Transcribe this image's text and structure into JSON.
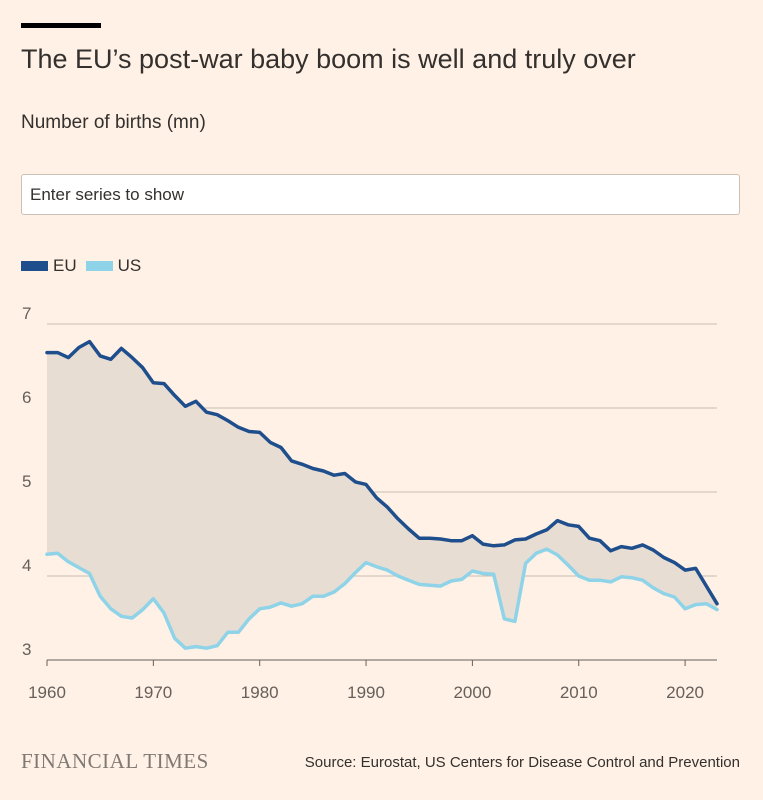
{
  "header": {
    "title": "The EU’s post-war baby boom is well and truly over",
    "subtitle": "Number of births (mn)"
  },
  "search": {
    "placeholder": "Enter series to show"
  },
  "footer": {
    "brand": "FINANCIAL TIMES",
    "source": "Source: Eurostat, US Centers for Disease Control and Prevention"
  },
  "chart_data": {
    "type": "line",
    "title": "The EU’s post-war baby boom is well and truly over",
    "ylabel": "Number of births (mn)",
    "xlim": [
      1960,
      2023
    ],
    "ylim": [
      3,
      7
    ],
    "xticks": [
      1960,
      1970,
      1980,
      1990,
      2000,
      2010,
      2020
    ],
    "yticks": [
      3,
      4,
      5,
      6,
      7
    ],
    "grid": true,
    "legend_position": "top-left",
    "fill_between": true,
    "colors": {
      "EU": "#1f4e8c",
      "US": "#8fd3e8",
      "fill": "#e8ddd3",
      "grid": "#c8beb5",
      "background": "#fff1e5"
    },
    "x": [
      1960,
      1961,
      1962,
      1963,
      1964,
      1965,
      1966,
      1967,
      1968,
      1969,
      1970,
      1971,
      1972,
      1973,
      1974,
      1975,
      1976,
      1977,
      1978,
      1979,
      1980,
      1981,
      1982,
      1983,
      1984,
      1985,
      1986,
      1987,
      1988,
      1989,
      1990,
      1991,
      1992,
      1993,
      1994,
      1995,
      1996,
      1997,
      1998,
      1999,
      2000,
      2001,
      2002,
      2003,
      2004,
      2005,
      2006,
      2007,
      2008,
      2009,
      2010,
      2011,
      2012,
      2013,
      2014,
      2015,
      2016,
      2017,
      2018,
      2019,
      2020,
      2021,
      2022,
      2023
    ],
    "series": [
      {
        "name": "EU",
        "values": [
          6.66,
          6.66,
          6.6,
          6.72,
          6.79,
          6.62,
          6.58,
          6.71,
          6.6,
          6.48,
          6.3,
          6.29,
          6.15,
          6.02,
          6.08,
          5.95,
          5.92,
          5.85,
          5.77,
          5.72,
          5.71,
          5.59,
          5.53,
          5.37,
          5.33,
          5.28,
          5.25,
          5.2,
          5.22,
          5.12,
          5.09,
          4.93,
          4.82,
          4.68,
          4.56,
          4.45,
          4.45,
          4.44,
          4.42,
          4.42,
          4.48,
          4.38,
          4.36,
          4.37,
          4.43,
          4.44,
          4.5,
          4.55,
          4.66,
          4.61,
          4.59,
          4.45,
          4.42,
          4.3,
          4.35,
          4.33,
          4.37,
          4.31,
          4.22,
          4.16,
          4.07,
          4.09,
          3.88,
          3.67
        ]
      },
      {
        "name": "US",
        "values": [
          4.26,
          4.27,
          4.17,
          4.1,
          4.03,
          3.76,
          3.61,
          3.52,
          3.5,
          3.6,
          3.73,
          3.56,
          3.26,
          3.14,
          3.16,
          3.14,
          3.17,
          3.33,
          3.33,
          3.49,
          3.61,
          3.63,
          3.68,
          3.64,
          3.67,
          3.76,
          3.76,
          3.81,
          3.91,
          4.04,
          4.16,
          4.11,
          4.07,
          4.0,
          3.95,
          3.9,
          3.89,
          3.88,
          3.94,
          3.96,
          4.06,
          4.03,
          4.02,
          3.49,
          3.46,
          4.15,
          4.27,
          4.32,
          4.25,
          4.13,
          4.0,
          3.95,
          3.95,
          3.93,
          3.99,
          3.98,
          3.95,
          3.86,
          3.79,
          3.75,
          3.61,
          3.66,
          3.67,
          3.6
        ]
      }
    ]
  }
}
